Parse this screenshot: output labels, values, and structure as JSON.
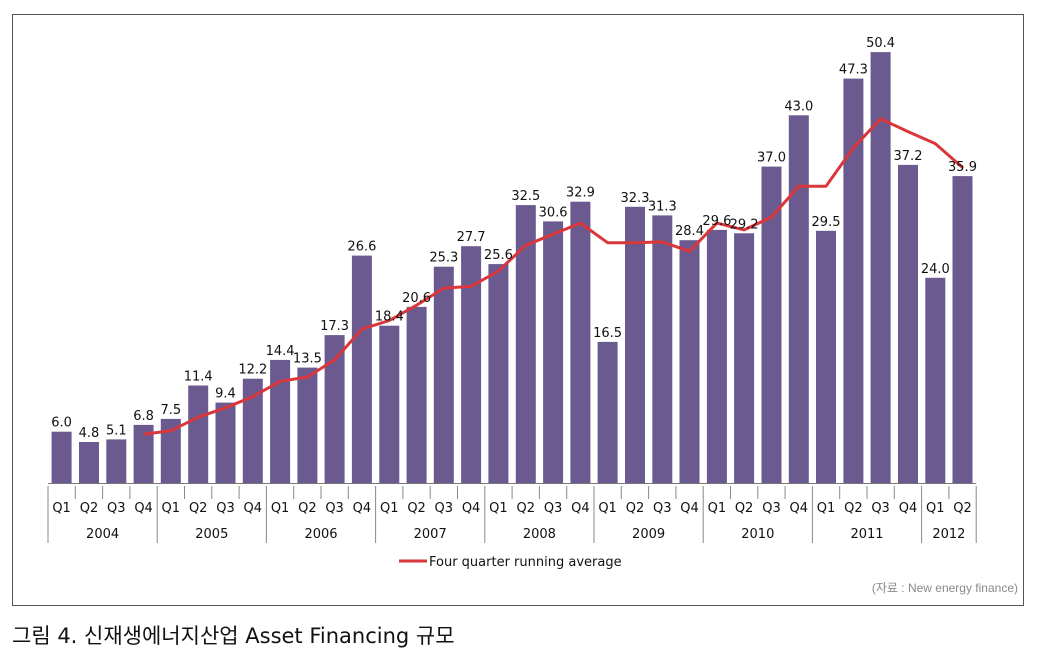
{
  "chart_data": {
    "type": "bar",
    "categories": [
      "Q1",
      "Q2",
      "Q3",
      "Q4",
      "Q1",
      "Q2",
      "Q3",
      "Q4",
      "Q1",
      "Q2",
      "Q3",
      "Q4",
      "Q1",
      "Q2",
      "Q3",
      "Q4",
      "Q1",
      "Q2",
      "Q3",
      "Q4",
      "Q1",
      "Q2",
      "Q3",
      "Q4",
      "Q1",
      "Q2",
      "Q3",
      "Q4",
      "Q1",
      "Q2",
      "Q3",
      "Q4",
      "Q1",
      "Q2"
    ],
    "years": [
      {
        "label": "2004",
        "quarters": 4
      },
      {
        "label": "2005",
        "quarters": 4
      },
      {
        "label": "2006",
        "quarters": 4
      },
      {
        "label": "2007",
        "quarters": 4
      },
      {
        "label": "2008",
        "quarters": 4
      },
      {
        "label": "2009",
        "quarters": 4
      },
      {
        "label": "2010",
        "quarters": 4
      },
      {
        "label": "2011",
        "quarters": 4
      },
      {
        "label": "2012",
        "quarters": 2
      }
    ],
    "values": [
      6.0,
      4.8,
      5.1,
      6.8,
      7.5,
      11.4,
      9.4,
      12.2,
      14.4,
      13.5,
      17.3,
      26.6,
      18.4,
      20.6,
      25.3,
      27.7,
      25.6,
      32.5,
      30.6,
      32.9,
      16.5,
      32.3,
      31.3,
      28.4,
      29.6,
      29.2,
      37.0,
      43.0,
      29.5,
      47.3,
      50.4,
      37.2,
      24.0,
      35.9
    ],
    "value_labels": [
      "6.0",
      "4.8",
      "5.1",
      "6.8",
      "7.5",
      "11.4",
      "9.4",
      "12.2",
      "14.4",
      "13.5",
      "17.3",
      "26.6",
      "18.4",
      "20.6",
      "25.3",
      "27.7",
      "25.6",
      "32.5",
      "30.6",
      "32.9",
      "16.5",
      "32.3",
      "31.3",
      "28.4",
      "29.6",
      "29.2",
      "37.0",
      "43.0",
      "29.5",
      "47.3",
      "50.4",
      "37.2",
      "24.0",
      "35.9"
    ],
    "running_average": {
      "name": "Four quarter running average",
      "values": [
        null,
        null,
        null,
        5.7,
        6.1,
        7.7,
        8.8,
        10.1,
        11.9,
        12.4,
        14.4,
        18.0,
        19.0,
        20.8,
        22.8,
        23.0,
        24.8,
        27.8,
        29.1,
        30.4,
        28.1,
        28.1,
        28.2,
        27.1,
        30.4,
        29.6,
        31.1,
        34.7,
        34.7,
        39.2,
        42.6,
        41.1,
        39.7,
        36.9
      ]
    },
    "legend_position": "bottom",
    "ylim": [
      0,
      55
    ],
    "grid": false,
    "colors": {
      "bar": "#6b5a8f",
      "line": "#d9373b"
    }
  },
  "source": "(자료 : New energy finance)",
  "caption": "그림 4. 신재생에너지산업 Asset Financing 규모"
}
